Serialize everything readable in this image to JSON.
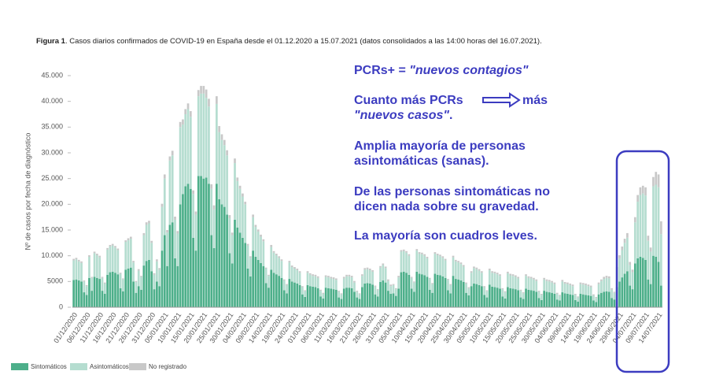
{
  "chart_data": {
    "type": "stacked_bar",
    "title_bold": "Figura 1",
    "title": ". Casos diarios confirmados de COVID-19 en España desde el 01.12.2020 a 15.07.2021 (datos consolidados a las 14:00 horas del 16.07.2021).",
    "y_label": "Nº de casos por fecha de diagnóstico",
    "ylim": [
      0,
      45000
    ],
    "yticks": [
      0,
      5000,
      {
        "value": 10000,
        "label": "10.000"
      },
      {
        "value": 15000,
        "label": "15.000"
      },
      {
        "value": 20000,
        "label": "20.000"
      },
      {
        "value": 25000,
        "label": "25.000"
      },
      {
        "value": 30000,
        "label": "30.000"
      },
      {
        "value": 35000,
        "label": "35.000"
      },
      {
        "value": 40000,
        "label": "40.000"
      },
      {
        "value": 45000,
        "label": "45.000"
      }
    ],
    "annotations": [
      [
        "PCRs+ = ",
        "\"nuevos contagios\""
      ],
      [
        "Cuanto más PCRs",
        "más"
      ],
      [
        "\"nuevos casos\"",
        "."
      ],
      [
        "Amplia mayoría de personas"
      ],
      [
        "asintomáticas (sanas)."
      ],
      [
        "De las personas sintomáticas no"
      ],
      [
        "dicen nada sobre su gravedad."
      ],
      [
        "La mayoría son cuadros leves."
      ]
    ],
    "categories": [
      "01/12/2020",
      null,
      null,
      null,
      null,
      "06/12/2020",
      null,
      null,
      null,
      null,
      "11/12/2020",
      null,
      null,
      null,
      null,
      "16/12/2020",
      null,
      null,
      null,
      null,
      "21/12/2020",
      null,
      null,
      null,
      null,
      "26/12/2020",
      null,
      null,
      null,
      null,
      "31/12/2020",
      null,
      null,
      null,
      null,
      "05/01/2021",
      null,
      null,
      null,
      null,
      "10/01/2021",
      null,
      null,
      null,
      null,
      "15/01/2021",
      null,
      null,
      null,
      null,
      "20/01/2021",
      null,
      null,
      null,
      null,
      "25/01/2021",
      null,
      null,
      null,
      null,
      "30/01/2021",
      null,
      null,
      null,
      null,
      "04/02/2021",
      null,
      null,
      null,
      null,
      "09/02/2021",
      null,
      null,
      null,
      null,
      "14/02/2021",
      null,
      null,
      null,
      null,
      "19/02/2021",
      null,
      null,
      null,
      null,
      "24/02/2021",
      null,
      null,
      null,
      null,
      "01/03/2021",
      null,
      null,
      null,
      null,
      "06/03/2021",
      null,
      null,
      null,
      null,
      "11/03/2021",
      null,
      null,
      null,
      null,
      "16/03/2021",
      null,
      null,
      null,
      null,
      "21/03/2021",
      null,
      null,
      null,
      null,
      "26/03/2021",
      null,
      null,
      null,
      null,
      "31/03/2021",
      null,
      null,
      null,
      null,
      "05/04/2021",
      null,
      null,
      null,
      null,
      "10/04/2021",
      null,
      null,
      null,
      null,
      "15/04/2021",
      null,
      null,
      null,
      null,
      "20/04/2021",
      null,
      null,
      null,
      null,
      "25/04/2021",
      null,
      null,
      null,
      null,
      "30/04/2021",
      null,
      null,
      null,
      null,
      "05/05/2021",
      null,
      null,
      null,
      null,
      "10/05/2021",
      null,
      null,
      null,
      null,
      "15/05/2021",
      null,
      null,
      null,
      null,
      "20/05/2021",
      null,
      null,
      null,
      null,
      "25/05/2021",
      null,
      null,
      null,
      null,
      "30/05/2021",
      null,
      null,
      null,
      null,
      "04/06/2021",
      null,
      null,
      null,
      null,
      "09/06/2021",
      null,
      null,
      null,
      null,
      "14/06/2021",
      null,
      null,
      null,
      null,
      "19/06/2021",
      null,
      null,
      null,
      null,
      "24/06/2021",
      null,
      null,
      null,
      null,
      "29/06/2021",
      null,
      null,
      null,
      null,
      "04/07/2021",
      null,
      null,
      null,
      null,
      "09/07/2021",
      null,
      null,
      null,
      null,
      "14/07/2021",
      null
    ],
    "series": [
      {
        "name": "Sintomáticos",
        "color": "#4daf8a",
        "values": [
          5300,
          5400,
          5200,
          5000,
          2900,
          2400,
          5700,
          3200,
          5900,
          5700,
          5500,
          3200,
          2600,
          6300,
          6800,
          6900,
          6700,
          6400,
          3700,
          3100,
          7300,
          7500,
          7700,
          5000,
          2800,
          4100,
          3400,
          8100,
          9000,
          9200,
          7000,
          3500,
          5000,
          4100,
          11000,
          14000,
          8000,
          16000,
          16500,
          9500,
          8000,
          20000,
          22000,
          23500,
          24000,
          23000,
          13500,
          11000,
          25500,
          25500,
          25000,
          25200,
          24000,
          14000,
          11500,
          24000,
          21000,
          20000,
          19500,
          18000,
          10500,
          8500,
          17000,
          15500,
          14500,
          13500,
          12500,
          7500,
          6000,
          11000,
          9800,
          9200,
          8600,
          8000,
          4700,
          3800,
          7300,
          6700,
          6400,
          6100,
          5700,
          3300,
          2700,
          5500,
          5000,
          4800,
          4600,
          4300,
          2500,
          2000,
          4300,
          4100,
          4000,
          3900,
          3700,
          2100,
          1700,
          3800,
          3700,
          3600,
          3500,
          3400,
          1900,
          1600,
          3600,
          3800,
          3800,
          3700,
          3000,
          1900,
          1600,
          3900,
          4600,
          4700,
          4600,
          4400,
          2500,
          2100,
          4900,
          5200,
          4800,
          3200,
          2600,
          2700,
          2200,
          3600,
          6800,
          6900,
          6700,
          6300,
          3600,
          3000,
          6900,
          6500,
          6400,
          6200,
          5900,
          3400,
          2800,
          6500,
          6300,
          6200,
          6000,
          5700,
          3300,
          2700,
          6100,
          5500,
          5400,
          5200,
          4900,
          2800,
          2300,
          4100,
          4600,
          4500,
          4300,
          4100,
          2400,
          1900,
          4400,
          4000,
          3900,
          3800,
          3600,
          2100,
          1700,
          3900,
          3700,
          3600,
          3500,
          3300,
          1900,
          1600,
          3600,
          3400,
          3300,
          3200,
          3000,
          1800,
          1400,
          3200,
          3000,
          2900,
          2800,
          2600,
          1500,
          1300,
          2900,
          2700,
          2600,
          2500,
          2400,
          1400,
          1100,
          2600,
          2500,
          2400,
          2300,
          2200,
          1300,
          1000,
          2500,
          2800,
          3000,
          3100,
          3000,
          1800,
          1500,
          3900,
          5000,
          5800,
          6500,
          7000,
          4200,
          3500,
          8500,
          9500,
          9800,
          9600,
          9200,
          5400,
          4500,
          10000,
          9800,
          8800,
          4200
        ]
      },
      {
        "name": "Asintomáticos",
        "color": "#b5ddd0",
        "values": [
          3800,
          3900,
          3700,
          3600,
          2100,
          1700,
          4100,
          2500,
          4600,
          4400,
          4200,
          2500,
          2000,
          4900,
          5000,
          5100,
          4900,
          4700,
          2800,
          2300,
          5400,
          5500,
          5600,
          3700,
          2100,
          3000,
          2500,
          5900,
          7000,
          7100,
          5500,
          2800,
          3900,
          3200,
          8500,
          11000,
          6500,
          12500,
          13000,
          7500,
          6300,
          15000,
          13500,
          14000,
          14500,
          14000,
          8500,
          7000,
          15500,
          16000,
          16500,
          15500,
          15000,
          9000,
          7500,
          15500,
          13000,
          12500,
          12000,
          11500,
          6800,
          5500,
          11000,
          9000,
          8500,
          8000,
          7500,
          4500,
          3600,
          6500,
          5800,
          5500,
          5100,
          4800,
          2800,
          2300,
          4400,
          3900,
          3700,
          3500,
          3300,
          1900,
          1600,
          3200,
          2800,
          2700,
          2600,
          2400,
          1400,
          1100,
          2400,
          2200,
          2100,
          2100,
          2000,
          1100,
          900,
          2100,
          2100,
          2000,
          2000,
          1900,
          1100,
          900,
          2000,
          2200,
          2200,
          2100,
          1800,
          1100,
          900,
          2200,
          2700,
          2700,
          2600,
          2500,
          1500,
          1200,
          2800,
          3000,
          2800,
          1900,
          1500,
          1600,
          1300,
          2200,
          4000,
          4000,
          3900,
          3700,
          2100,
          1800,
          4100,
          3900,
          3900,
          3800,
          3600,
          2100,
          1700,
          3900,
          3800,
          3700,
          3600,
          3400,
          2000,
          1600,
          3600,
          3400,
          3300,
          3200,
          3000,
          1800,
          1400,
          2600,
          3000,
          2900,
          2800,
          2600,
          1500,
          1200,
          2800,
          2700,
          2700,
          2600,
          2500,
          1400,
          1200,
          2700,
          2500,
          2500,
          2400,
          2300,
          1300,
          1100,
          2500,
          2300,
          2300,
          2200,
          2100,
          1200,
          1000,
          2200,
          2100,
          2100,
          2000,
          1900,
          1100,
          900,
          2100,
          1900,
          1900,
          1800,
          1700,
          1000,
          800,
          1900,
          1900,
          1900,
          1800,
          1700,
          1000,
          800,
          2000,
          2300,
          2500,
          2600,
          2600,
          1600,
          1300,
          3400,
          4500,
          5300,
          6000,
          6500,
          4000,
          3300,
          8000,
          11000,
          12000,
          12500,
          12500,
          7500,
          6300,
          13500,
          14000,
          14500,
          10000
        ]
      },
      {
        "name": "No registrado",
        "color": "#c8c8c8",
        "values": [
          300,
          300,
          300,
          300,
          200,
          200,
          300,
          200,
          300,
          300,
          300,
          200,
          200,
          300,
          300,
          300,
          300,
          300,
          200,
          200,
          300,
          400,
          400,
          300,
          200,
          300,
          200,
          400,
          500,
          500,
          400,
          300,
          400,
          300,
          600,
          800,
          500,
          800,
          900,
          600,
          500,
          1000,
          1000,
          1000,
          1100,
          1100,
          700,
          600,
          1200,
          1500,
          1500,
          1600,
          1500,
          900,
          800,
          1500,
          1200,
          1100,
          1000,
          1000,
          600,
          500,
          900,
          700,
          600,
          600,
          500,
          300,
          300,
          500,
          400,
          400,
          400,
          400,
          200,
          200,
          400,
          300,
          300,
          300,
          300,
          200,
          200,
          300,
          300,
          300,
          300,
          300,
          200,
          200,
          300,
          300,
          300,
          300,
          300,
          200,
          200,
          300,
          300,
          300,
          300,
          300,
          200,
          200,
          300,
          300,
          300,
          300,
          300,
          200,
          200,
          300,
          300,
          300,
          300,
          300,
          200,
          200,
          300,
          300,
          300,
          300,
          300,
          200,
          200,
          300,
          300,
          300,
          300,
          300,
          200,
          200,
          300,
          300,
          300,
          300,
          300,
          200,
          200,
          300,
          300,
          300,
          300,
          300,
          200,
          200,
          300,
          300,
          300,
          300,
          300,
          200,
          200,
          300,
          300,
          300,
          300,
          300,
          200,
          200,
          300,
          300,
          300,
          300,
          300,
          200,
          200,
          300,
          300,
          300,
          300,
          300,
          200,
          200,
          300,
          300,
          300,
          300,
          300,
          200,
          200,
          300,
          300,
          300,
          300,
          300,
          200,
          200,
          300,
          300,
          300,
          300,
          300,
          200,
          200,
          300,
          300,
          300,
          300,
          300,
          200,
          200,
          300,
          300,
          400,
          400,
          400,
          300,
          200,
          500,
          600,
          700,
          800,
          900,
          600,
          500,
          1000,
          1300,
          1500,
          1500,
          1600,
          1000,
          800,
          1800,
          2500,
          2500,
          2500
        ]
      }
    ]
  }
}
